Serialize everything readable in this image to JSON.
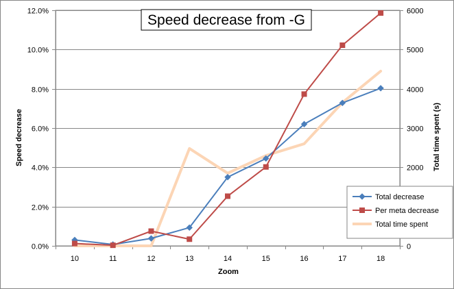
{
  "chart_data": {
    "type": "line",
    "title": "Speed decrease from -G",
    "xlabel": "Zoom",
    "ylabel": "Speed decrease",
    "y2label": "Total time spent (s)",
    "x": [
      10,
      11,
      12,
      13,
      14,
      15,
      16,
      17,
      18
    ],
    "x_tick_labels": [
      "10",
      "11",
      "12",
      "13",
      "14",
      "15",
      "16",
      "17",
      "18"
    ],
    "ylim": [
      0,
      0.12
    ],
    "y_ticks": [
      0,
      0.02,
      0.04,
      0.06,
      0.08,
      0.1,
      0.12
    ],
    "y_tick_labels": [
      "0.0%",
      "2.0%",
      "4.0%",
      "6.0%",
      "8.0%",
      "10.0%",
      "12.0%"
    ],
    "y2lim": [
      0,
      6000
    ],
    "y2_ticks": [
      0,
      1000,
      2000,
      3000,
      4000,
      5000,
      6000
    ],
    "y2_tick_labels": [
      "0",
      "1000",
      "2000",
      "3000",
      "4000",
      "5000",
      "6000"
    ],
    "grid": true,
    "legend_position": "bottom-right",
    "series": [
      {
        "name": "Total decrease",
        "axis": "left",
        "color": "#4a7ebb",
        "marker": "diamond",
        "values": [
          0.003,
          0.0007,
          0.0038,
          0.0093,
          0.035,
          0.0445,
          0.062,
          0.0728,
          0.0803
        ]
      },
      {
        "name": "Per meta decrease",
        "axis": "left",
        "color": "#be4b48",
        "marker": "square",
        "values": [
          0.0012,
          0.0003,
          0.0075,
          0.0034,
          0.0253,
          0.0402,
          0.0773,
          0.1022,
          0.1186
        ]
      },
      {
        "name": "Total time spent",
        "axis": "right",
        "color": "#fcd5b5",
        "marker": "none",
        "values": [
          0,
          0,
          0,
          2480,
          1850,
          2300,
          2600,
          3650,
          4450
        ]
      }
    ]
  }
}
